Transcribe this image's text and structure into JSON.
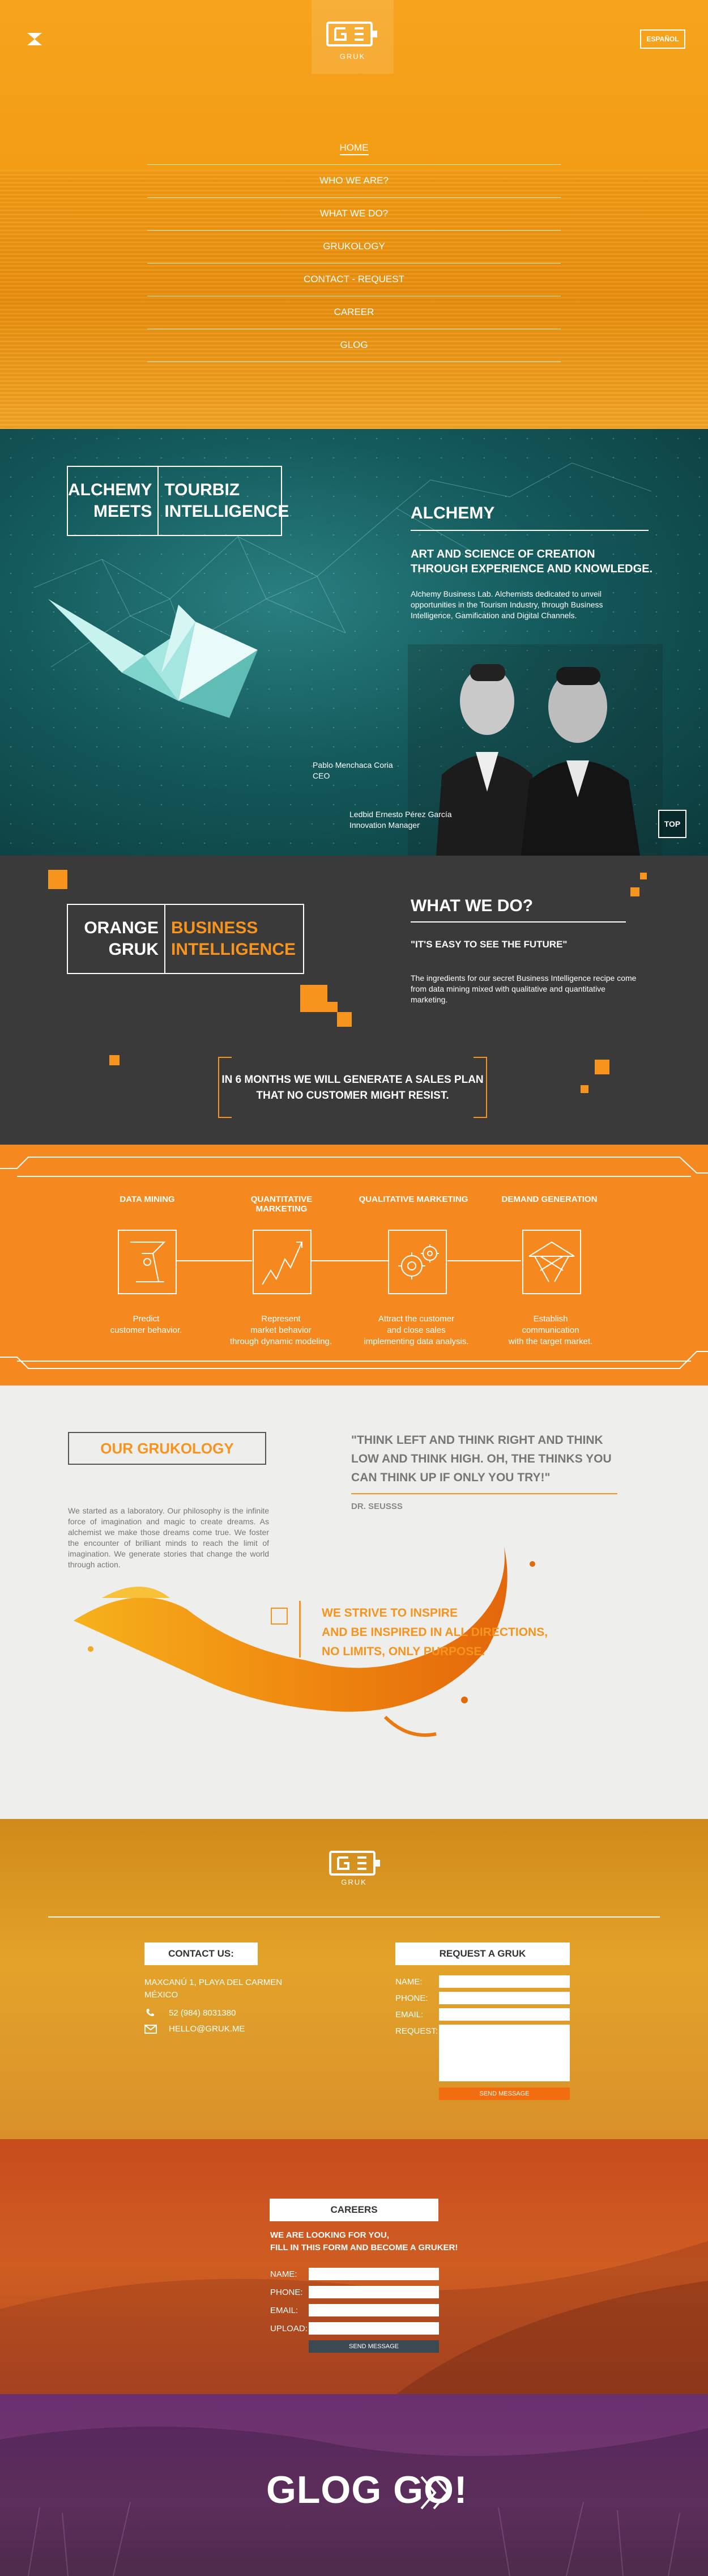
{
  "header": {
    "language_label": "ESPAÑOL",
    "logo_text": "GRUK",
    "menu_icon": "close-x-icon"
  },
  "nav": {
    "items": [
      {
        "label": "HOME",
        "active": true
      },
      {
        "label": "WHO WE ARE?",
        "active": false
      },
      {
        "label": "WHAT WE DO?",
        "active": false
      },
      {
        "label": "GRUKOLOGY",
        "active": false
      },
      {
        "label": "CONTACT - REQUEST",
        "active": false
      },
      {
        "label": "CAREER",
        "active": false
      },
      {
        "label": "GLOG",
        "active": false
      }
    ]
  },
  "alchemy": {
    "box_left": [
      "ALCHEMY",
      "MEETS"
    ],
    "box_right": [
      "TOURBIZ",
      "INTELLIGENCE"
    ],
    "heading": "ALCHEMY",
    "subheading_1": "ART AND SCIENCE OF CREATION",
    "subheading_2": "THROUGH EXPERIENCE AND KNOWLEDGE.",
    "body": "Alchemy Business Lab. Alchemists dedicated to unveil opportunities in the Tourism Industry, through Business Intelligence, Gamification and Digital Channels.",
    "person1_name": "Pablo Menchaca Coria",
    "person1_role": "CEO",
    "person2_name": "Ledbid Ernesto Pérez García",
    "person2_role": "Innovation Manager",
    "top_label": "TOP"
  },
  "what_we_do": {
    "box_left": [
      "ORANGE",
      "GRUK"
    ],
    "box_right": [
      "BUSINESS",
      "INTELLIGENCE"
    ],
    "heading": "WHAT WE DO?",
    "quote": "\"IT'S EASY TO SEE THE FUTURE\"",
    "body": "The ingredients for our secret Business Intelligence recipe come from data mining mixed with qualitative and quantitative marketing.",
    "banner_1": "IN 6 MONTHS WE WILL GENERATE A SALES PLAN",
    "banner_2": "THAT NO CUSTOMER MIGHT RESIST."
  },
  "process": {
    "steps": [
      {
        "title": "DATA MINING",
        "icon": "data-mining-icon",
        "desc": [
          "Predict",
          "customer behavior."
        ]
      },
      {
        "title": "QUANTITATIVE MARKETING",
        "icon": "growth-chart-icon",
        "desc": [
          "Represent",
          "market behavior",
          "through dynamic modeling."
        ]
      },
      {
        "title": "QUALITATIVE MARKETING",
        "icon": "gears-icon",
        "desc": [
          "Attract the customer",
          "and close sales",
          "implementing data analysis."
        ]
      },
      {
        "title": "DEMAND GENERATION",
        "icon": "network-icon",
        "desc": [
          "Establish",
          "communication",
          "with the target market."
        ]
      }
    ]
  },
  "grukology": {
    "title": "OUR GRUKOLOGY",
    "quote": "\"THINK LEFT AND THINK RIGHT AND THINK LOW AND THINK HIGH. OH, THE THINKS YOU CAN THINK UP IF ONLY YOU TRY!\"",
    "quote_author": "DR. SEUSSS",
    "body": "We started as a laboratory. Our philosophy is the infinite force of imagination and magic to create dreams. As alchemist we make those dreams come true. We foster the encounter of brilliant minds to reach the limit of imagination. We generate stories that change the world through action.",
    "tagline_1": "WE STRIVE TO INSPIRE",
    "tagline_2": "AND BE INSPIRED IN ALL DIRECTIONS,",
    "tagline_3": "NO LIMITS, ONLY PURPOSE."
  },
  "contact": {
    "logo_text": "GRUK",
    "contact_title": "CONTACT US:",
    "address_1": "MAXCANÚ 1, PLAYA DEL CARMEN",
    "address_2": "MÉXICO",
    "phone": "52 (984) 8031380",
    "email": "HELLO@GRUK.ME",
    "request_title": "REQUEST A GRUK",
    "name_label": "NAME:",
    "phone_label": "PHONE:",
    "email_label": "EMAIL:",
    "request_label": "REQUEST:",
    "send_label": "SEND MESSAGE"
  },
  "careers": {
    "title": "CAREERS",
    "line1": "WE ARE LOOKING FOR YOU,",
    "line2": "FILL IN THIS FORM AND BECOME A GRUKER!",
    "name_label": "NAME:",
    "phone_label": "PHONE:",
    "email_label": "EMAIL:",
    "upload_label": "UPLOAD:",
    "send_label": "SEND MESSAGE"
  },
  "glog": {
    "label": "GLOG GO!",
    "arrow_icon": "double-chevron-right-icon"
  },
  "colors": {
    "orange": "#f7941d",
    "dark": "#3a3a3a",
    "teal": "#145a5c",
    "light_bg": "#eeeeec"
  }
}
